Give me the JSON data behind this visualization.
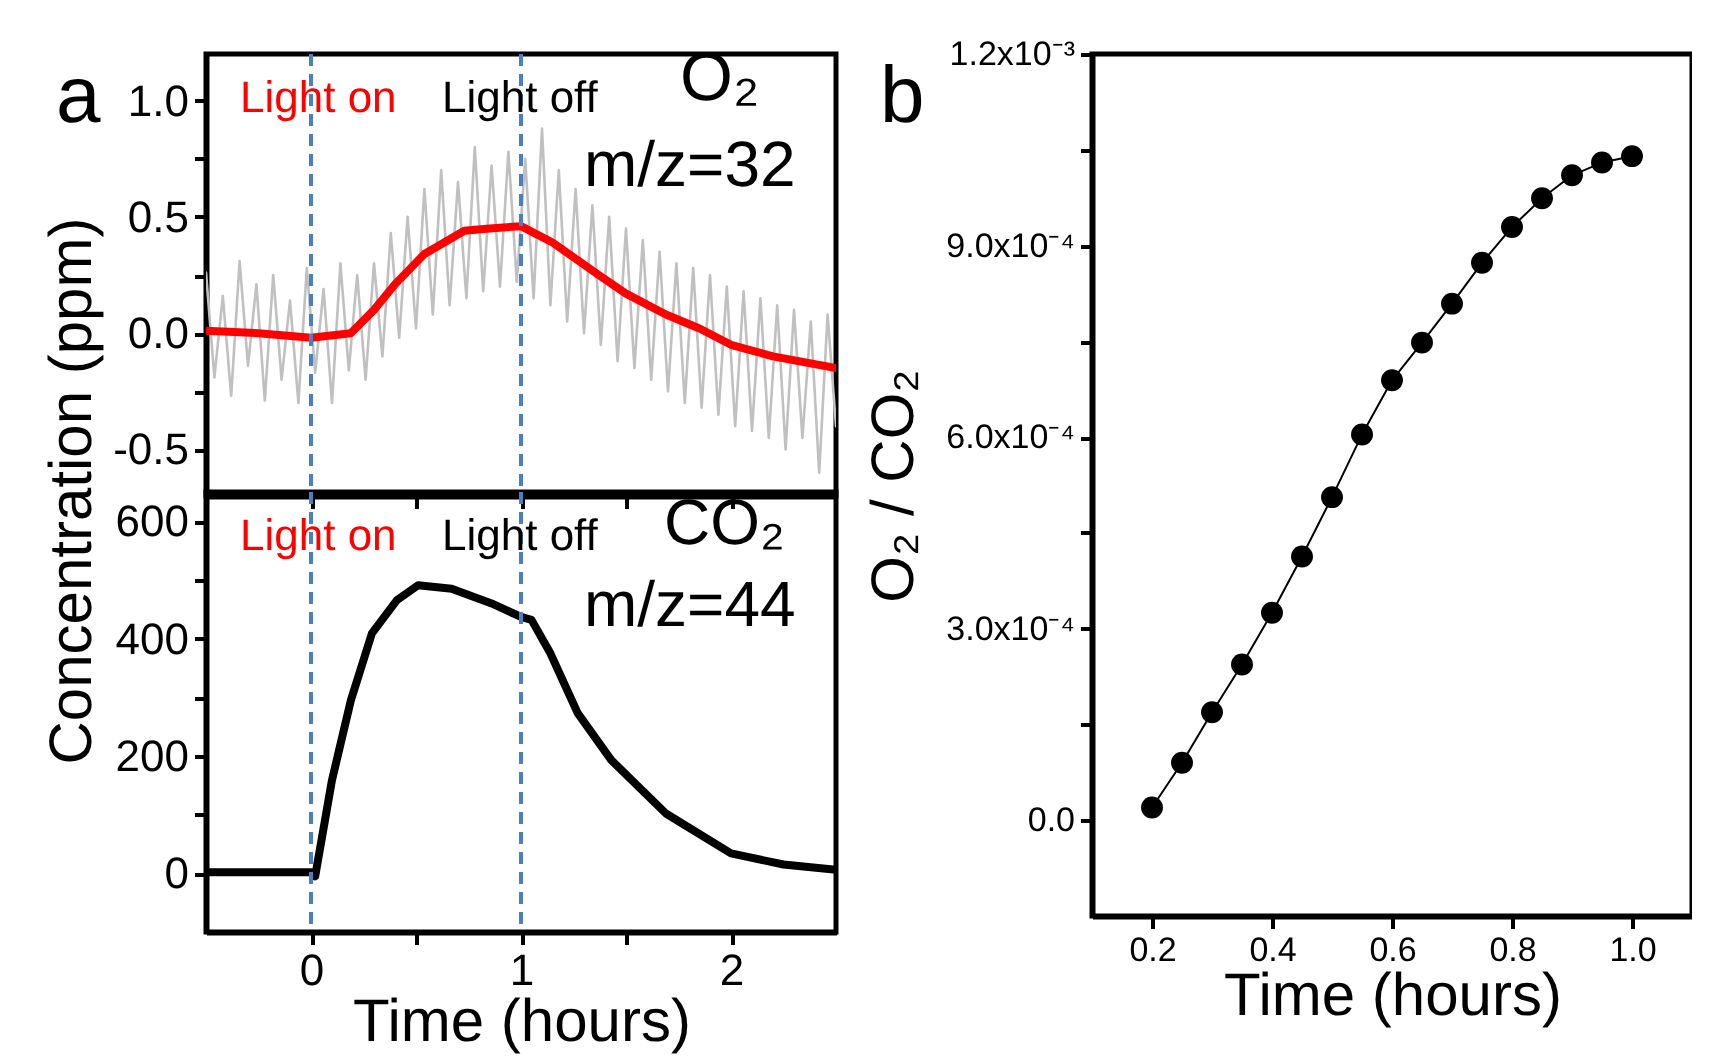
{
  "chart_data": [
    {
      "type": "line",
      "ylabel": "Concentration (ppm)",
      "annotations": [
        "a",
        "Light on",
        "Light off",
        "O₂",
        "m/z=32"
      ],
      "xlim": [
        -0.5,
        2.5
      ],
      "xticks": [
        {
          "value": -0.5,
          "label": null
        },
        {
          "value": 0,
          "label": null
        },
        {
          "value": 0.5,
          "label": null
        },
        {
          "value": 1,
          "label": null
        },
        {
          "value": 1.5,
          "label": null
        },
        {
          "value": 2,
          "label": null
        }
      ],
      "ylim": [
        -0.7,
        1.2
      ],
      "yticks": [
        {
          "value": -0.5,
          "label": "-0.5"
        },
        {
          "value": -0.25,
          "label": null
        },
        {
          "value": 0,
          "label": "0.0"
        },
        {
          "value": 0.25,
          "label": null
        },
        {
          "value": 0.5,
          "label": "0.5"
        },
        {
          "value": 0.75,
          "label": null
        },
        {
          "value": 1,
          "label": "1.0"
        }
      ],
      "tick_labels": "y",
      "ref_lines": [
        {
          "axis": "x",
          "value": 0,
          "color": "#4a7fc1",
          "line_style": "dashed"
        },
        {
          "axis": "x",
          "value": 1,
          "color": "#4a7fc1",
          "line_style": "dashed"
        }
      ],
      "series": [
        {
          "color": "#c0c0c0",
          "x": [
            -0.5,
            -0.46,
            -0.42,
            -0.38,
            -0.34,
            -0.3,
            -0.26,
            -0.22,
            -0.18,
            -0.14,
            -0.1,
            -0.06,
            -0.02,
            0.02,
            0.06,
            0.1,
            0.14,
            0.18,
            0.22,
            0.26,
            0.3,
            0.34,
            0.38,
            0.42,
            0.46,
            0.5,
            0.54,
            0.58,
            0.62,
            0.66,
            0.7,
            0.74,
            0.78,
            0.82,
            0.86,
            0.9,
            0.94,
            0.98,
            1.02,
            1.06,
            1.1,
            1.14,
            1.18,
            1.22,
            1.26,
            1.3,
            1.34,
            1.38,
            1.42,
            1.46,
            1.5,
            1.54,
            1.58,
            1.62,
            1.66,
            1.7,
            1.74,
            1.78,
            1.82,
            1.86,
            1.9,
            1.94,
            1.98,
            2.02,
            2.06,
            2.1,
            2.14,
            2.18,
            2.22,
            2.26,
            2.3,
            2.34,
            2.38,
            2.42,
            2.46,
            2.5
          ],
          "values": [
            0.26,
            -0.19,
            0.16,
            -0.27,
            0.31,
            -0.14,
            0.21,
            -0.29,
            0.25,
            -0.2,
            0.14,
            -0.3,
            0.28,
            -0.17,
            0.19,
            -0.3,
            0.3,
            -0.16,
            0.25,
            -0.2,
            0.3,
            -0.1,
            0.43,
            -0.02,
            0.5,
            0.02,
            0.62,
            0.08,
            0.7,
            0.12,
            0.65,
            0.15,
            0.8,
            0.18,
            0.72,
            0.2,
            0.78,
            0.22,
            0.75,
            0.15,
            0.88,
            0.12,
            0.7,
            0.05,
            0.62,
            0.0,
            0.55,
            -0.05,
            0.5,
            -0.12,
            0.45,
            -0.15,
            0.4,
            -0.2,
            0.35,
            -0.25,
            0.3,
            -0.3,
            0.28,
            -0.32,
            0.25,
            -0.35,
            0.2,
            -0.4,
            0.18,
            -0.42,
            0.15,
            -0.45,
            0.12,
            -0.5,
            0.1,
            -0.45,
            0.05,
            -0.6,
            0.08,
            -0.4
          ]
        },
        {
          "color": "#ff0000",
          "x": [
            -0.5,
            -0.25,
            0,
            0.19,
            0.3,
            0.4,
            0.54,
            0.73,
            0.85,
            1.0,
            1.15,
            1.37,
            1.5,
            1.69,
            1.85,
            2.0,
            2.2,
            2.5
          ],
          "values": [
            0.01,
            0.0,
            -0.02,
            0.0,
            0.1,
            0.21,
            0.34,
            0.44,
            0.45,
            0.46,
            0.39,
            0.25,
            0.17,
            0.08,
            0.02,
            -0.05,
            -0.1,
            -0.15
          ]
        }
      ]
    },
    {
      "type": "line",
      "xlabel": "Time (hours)",
      "annotations": [
        "Light on",
        "Light off",
        "CO₂",
        "m/z=44"
      ],
      "xlim": [
        -0.5,
        2.5
      ],
      "xticks": [
        0,
        {
          "value": 0.5,
          "label": null
        },
        1,
        {
          "value": 1.5,
          "label": null
        },
        2
      ],
      "ylim": [
        -100,
        650
      ],
      "yticks": [
        0,
        {
          "value": 100,
          "label": null
        },
        200,
        {
          "value": 300,
          "label": null
        },
        400,
        {
          "value": 500,
          "label": null
        },
        600
      ],
      "ref_lines": [
        {
          "axis": "x",
          "value": 0,
          "color": "#4a7fc1",
          "line_style": "dashed"
        },
        {
          "axis": "x",
          "value": 1,
          "color": "#4a7fc1",
          "line_style": "dashed"
        }
      ],
      "series": [
        {
          "color": "#000000",
          "x": [
            -0.5,
            -0.25,
            0,
            0.02,
            0.1,
            0.19,
            0.29,
            0.41,
            0.51,
            0.67,
            0.86,
            1.0,
            1.05,
            1.14,
            1.27,
            1.43,
            1.69,
            2.0,
            2.25,
            2.5
          ],
          "values": [
            2,
            2,
            2,
            -5,
            159,
            295,
            409,
            466,
            491,
            485,
            460,
            437,
            432,
            375,
            273,
            193,
            102,
            34,
            15,
            6
          ]
        }
      ]
    },
    {
      "type": "line",
      "xlabel": "Time (hours)",
      "ylabel": "O₂ / CO₂",
      "annotations": [
        "b"
      ],
      "marker": "circle",
      "xlim": [
        0.1,
        1.1
      ],
      "xticks": [
        0.2,
        0.4,
        0.6,
        0.8,
        {
          "value": 1,
          "label": "1.0"
        }
      ],
      "ylim": [
        -0.00015,
        0.0012
      ],
      "yticks": [
        {
          "value": 0,
          "label": "0.0"
        },
        {
          "value": 0.00015,
          "label": null
        },
        {
          "value": 0.0003,
          "label": "3.0x10⁻⁴"
        },
        {
          "value": 0.00045,
          "label": null
        },
        {
          "value": 0.0006,
          "label": "6.0x10⁻⁴"
        },
        {
          "value": 0.00075,
          "label": null
        },
        {
          "value": 0.0009,
          "label": "9.0x10⁻⁴"
        },
        {
          "value": 0.00105,
          "label": null
        },
        {
          "value": 0.0012,
          "label": "1.2x10⁻³"
        }
      ],
      "series": [
        {
          "color": "#000000",
          "x": [
            0.2,
            0.25,
            0.3,
            0.35,
            0.4,
            0.45,
            0.5,
            0.55,
            0.6,
            0.65,
            0.7,
            0.75,
            0.8,
            0.85,
            0.9,
            0.95,
            1.0
          ],
          "values": [
            2e-05,
            9e-05,
            0.000169,
            0.000244,
            0.000325,
            0.000413,
            0.000506,
            0.000604,
            0.000689,
            0.000748,
            0.000809,
            0.000873,
            0.000929,
            0.000974,
            0.00101,
            0.00103,
            0.00104
          ]
        }
      ]
    }
  ]
}
